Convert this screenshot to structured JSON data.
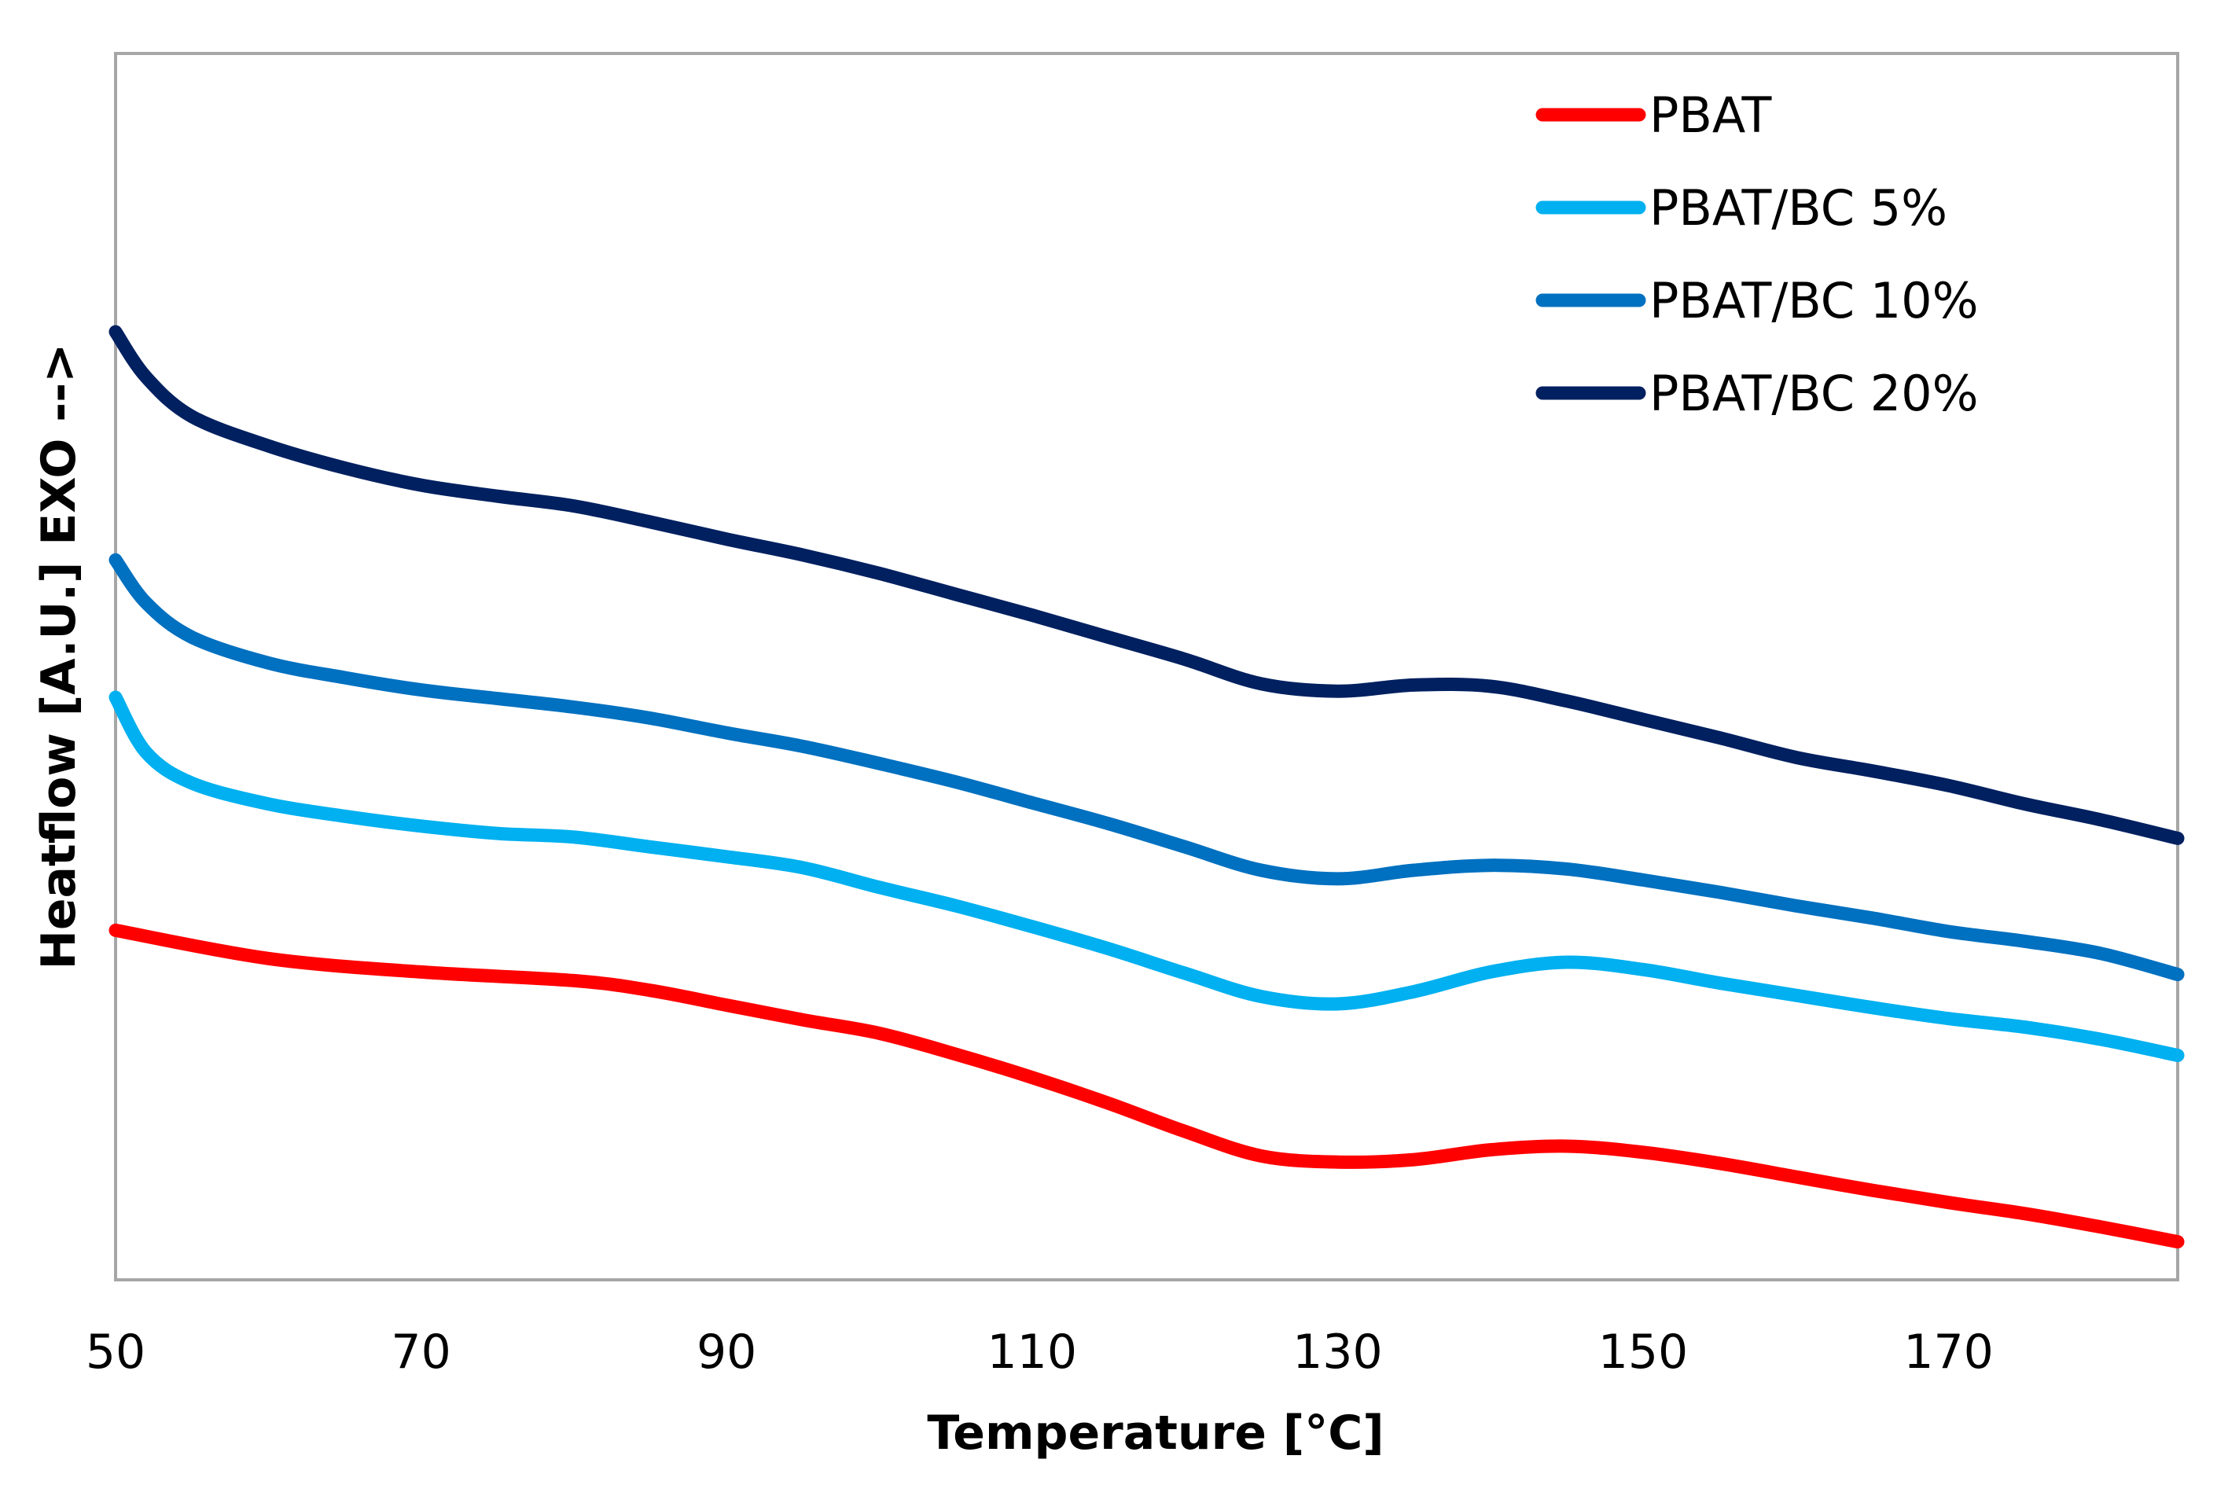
{
  "chart_data": {
    "type": "line",
    "title": "",
    "xlabel": "Temperature [°C]",
    "ylabel": "Heatflow [A.U.] EXO -->",
    "xlim": [
      50,
      185
    ],
    "ylim": [
      0,
      100
    ],
    "x_ticks": [
      "50",
      "70",
      "90",
      "110",
      "130",
      "150",
      "170"
    ],
    "grid": false,
    "legend": "top-right",
    "series": [
      {
        "name": "PBAT",
        "color": "#ff0000",
        "x": [
          50,
          60,
          70,
          80,
          85,
          90,
          95,
          100,
          105,
          110,
          115,
          120,
          125,
          130,
          135,
          140,
          145,
          150,
          155,
          160,
          165,
          170,
          175,
          180,
          185
        ],
        "y": [
          28.5,
          26.2,
          25.1,
          24.4,
          23.6,
          22.4,
          21.2,
          20.1,
          18.4,
          16.5,
          14.4,
          12.1,
          10.1,
          9.6,
          9.8,
          10.6,
          10.9,
          10.4,
          9.5,
          8.4,
          7.3,
          6.3,
          5.4,
          4.3,
          3.1
        ]
      },
      {
        "name": "PBAT/BC 5%",
        "color": "#00b0f0",
        "x": [
          50,
          52,
          55,
          60,
          65,
          70,
          75,
          80,
          85,
          90,
          95,
          100,
          105,
          110,
          115,
          120,
          125,
          130,
          135,
          140,
          145,
          150,
          155,
          160,
          165,
          170,
          175,
          180,
          185
        ],
        "y": [
          47.5,
          43.0,
          40.5,
          38.8,
          37.8,
          37.0,
          36.4,
          36.1,
          35.3,
          34.5,
          33.6,
          32.0,
          30.5,
          28.8,
          27.0,
          25.0,
          23.1,
          22.5,
          23.5,
          25.1,
          25.9,
          25.3,
          24.2,
          23.2,
          22.2,
          21.3,
          20.6,
          19.6,
          18.3
        ]
      },
      {
        "name": "PBAT/BC 10%",
        "color": "#0070c0",
        "x": [
          50,
          52,
          55,
          60,
          65,
          70,
          75,
          80,
          85,
          90,
          95,
          100,
          105,
          110,
          115,
          120,
          125,
          130,
          135,
          140,
          145,
          150,
          155,
          160,
          165,
          170,
          175,
          180,
          185
        ],
        "y": [
          58.7,
          55.2,
          52.4,
          50.3,
          49.1,
          48.1,
          47.4,
          46.7,
          45.8,
          44.6,
          43.5,
          42.1,
          40.6,
          38.9,
          37.2,
          35.3,
          33.4,
          32.7,
          33.4,
          33.8,
          33.5,
          32.6,
          31.6,
          30.5,
          29.5,
          28.4,
          27.6,
          26.6,
          24.9
        ]
      },
      {
        "name": "PBAT/BC 20%",
        "color": "#002060",
        "x": [
          50,
          52,
          55,
          60,
          65,
          70,
          75,
          80,
          85,
          90,
          95,
          100,
          105,
          110,
          115,
          120,
          125,
          130,
          135,
          140,
          145,
          150,
          155,
          160,
          165,
          170,
          175,
          180,
          185
        ],
        "y": [
          77.3,
          73.6,
          70.4,
          68.0,
          66.2,
          64.8,
          63.9,
          63.1,
          61.8,
          60.4,
          59.1,
          57.6,
          55.9,
          54.2,
          52.4,
          50.6,
          48.6,
          48.0,
          48.5,
          48.4,
          47.2,
          45.7,
          44.2,
          42.6,
          41.5,
          40.3,
          38.8,
          37.5,
          36.0
        ]
      }
    ]
  }
}
